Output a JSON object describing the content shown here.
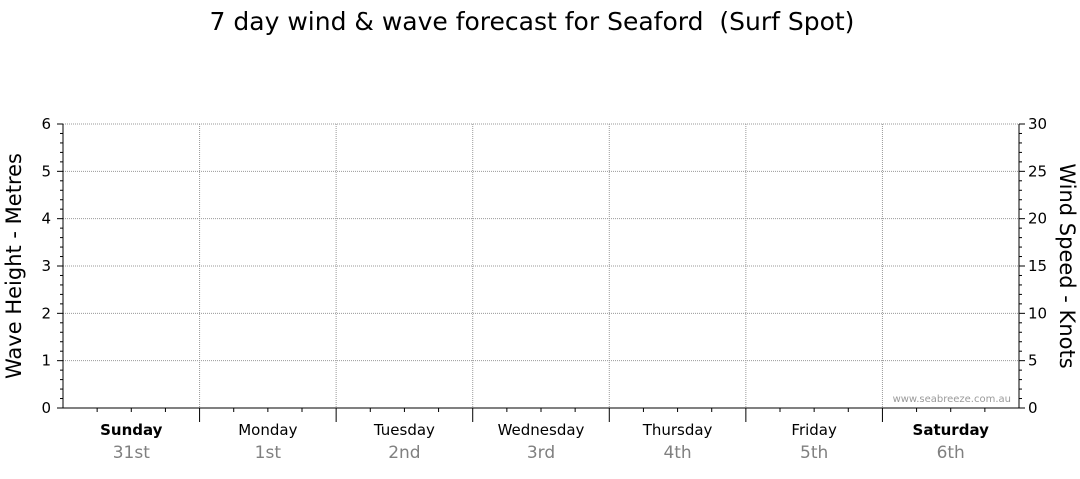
{
  "chart_data": {
    "type": "line",
    "title": "7 day wind & wave forecast for Seaford  (Surf Spot)",
    "left_axis": {
      "label": "Wave Height - Metres",
      "range": [
        0,
        6
      ],
      "ticks": [
        "0",
        "1",
        "2",
        "3",
        "4",
        "5",
        "6"
      ]
    },
    "right_axis": {
      "label": "Wind Speed - Knots",
      "range": [
        0,
        30
      ],
      "ticks": [
        "0",
        "5",
        "10",
        "15",
        "20",
        "25",
        "30"
      ]
    },
    "days": [
      {
        "name": "Sunday",
        "date": "31st",
        "bold": true
      },
      {
        "name": "Monday",
        "date": "1st",
        "bold": false
      },
      {
        "name": "Tuesday",
        "date": "2nd",
        "bold": false
      },
      {
        "name": "Wednesday",
        "date": "3rd",
        "bold": false
      },
      {
        "name": "Thursday",
        "date": "4th",
        "bold": false
      },
      {
        "name": "Friday",
        "date": "5th",
        "bold": false
      },
      {
        "name": "Saturday",
        "date": "6th",
        "bold": true
      }
    ],
    "series": [],
    "grid": true,
    "watermark": "www.seabreeze.com.au"
  },
  "colors": {
    "grid": "#9a9a9a",
    "axis": "#000000",
    "date": "#808080",
    "watermark": "#9a9a9a"
  }
}
